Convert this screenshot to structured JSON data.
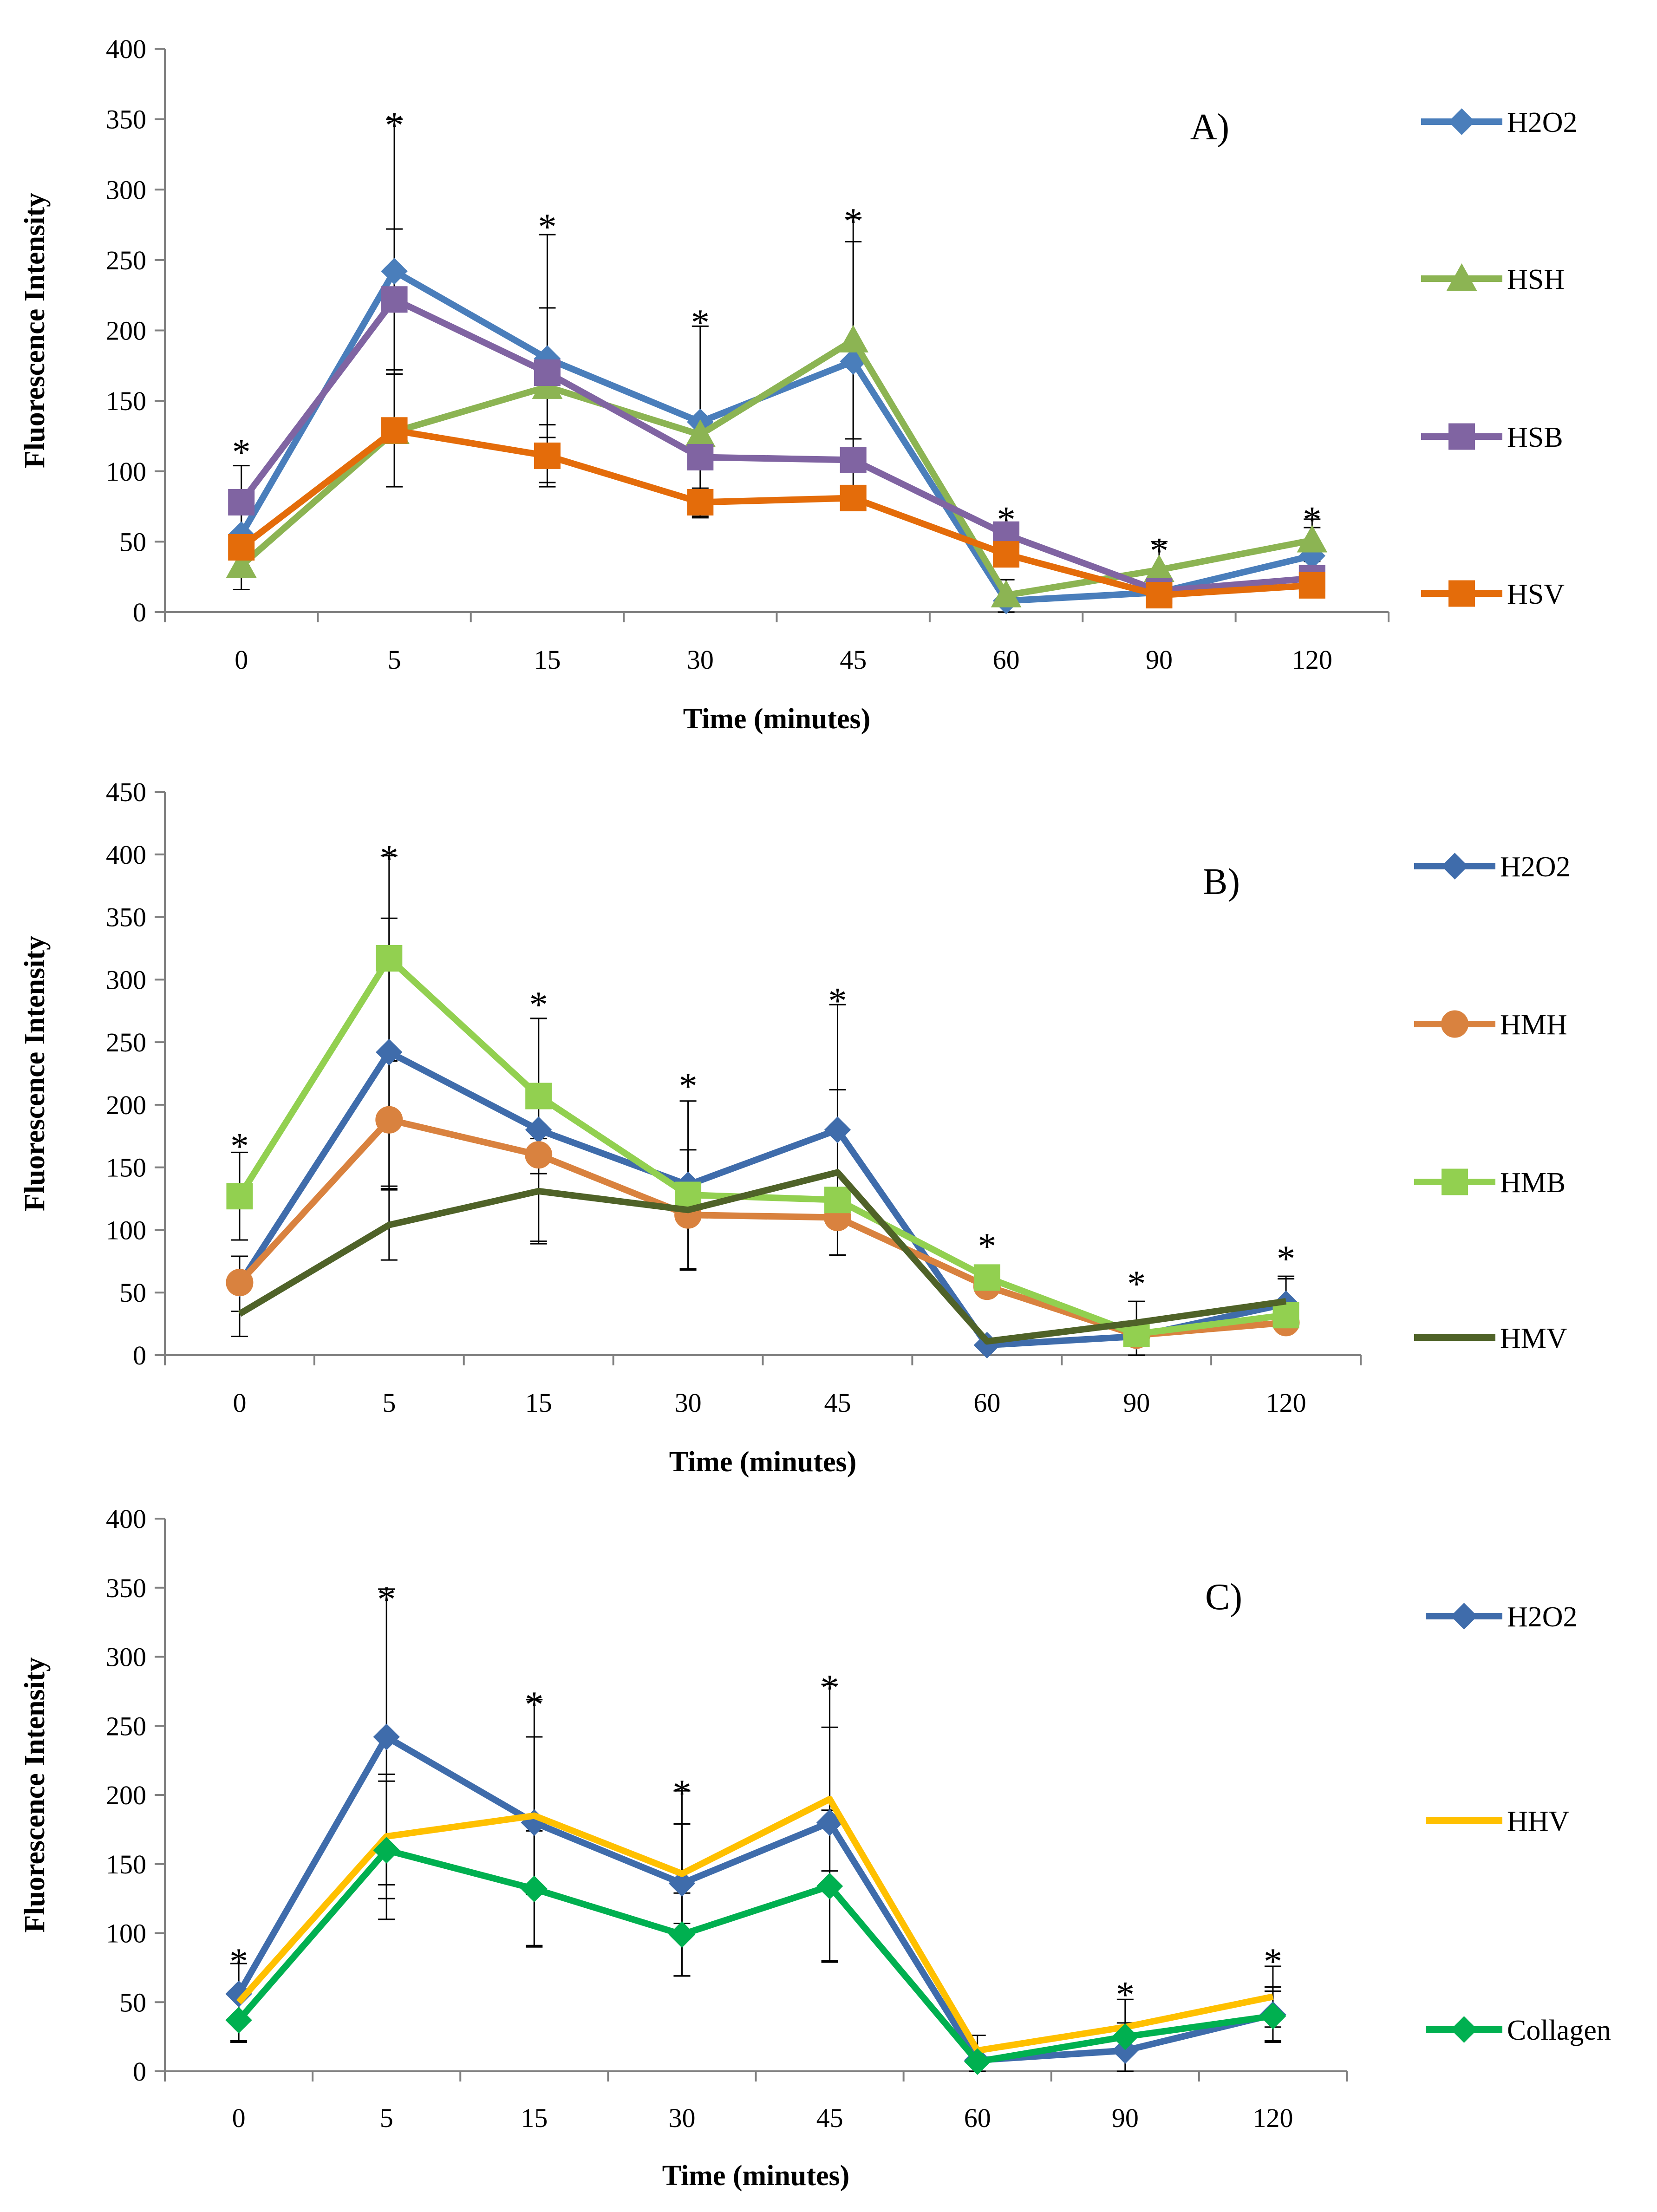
{
  "chart_data": [
    {
      "type": "line",
      "panel_label": "A)",
      "xlabel": "Time (minutes)",
      "ylabel": "Fluorescence Intensity",
      "categories": [
        "0",
        "5",
        "15",
        "30",
        "45",
        "60",
        "90",
        "120"
      ],
      "ylim": [
        0,
        400
      ],
      "yticks": [
        0,
        50,
        100,
        150,
        200,
        250,
        300,
        350,
        400
      ],
      "yticklabels": [
        "0",
        "50",
        "100",
        "150",
        "200",
        "250",
        "300",
        "350",
        "400"
      ],
      "significance": [
        "*",
        "*",
        "*",
        "*",
        "*",
        "*",
        "*",
        "*"
      ],
      "significance_y": [
        118,
        350,
        278,
        210,
        282,
        70,
        48,
        70
      ],
      "legend_position": "right",
      "series": [
        {
          "name": "H2O2",
          "color": "#4a7ebb",
          "marker": "diamond",
          "values": [
            55,
            242,
            180,
            135,
            178,
            8,
            14,
            40
          ],
          "errors": [
            22,
            108,
            88,
            68,
            102,
            15,
            0,
            20
          ]
        },
        {
          "name": "HSH",
          "color": "#8cb453",
          "marker": "triangle",
          "values": [
            33,
            128,
            160,
            126,
            193,
            12,
            30,
            51
          ],
          "errors": [
            17,
            0,
            56,
            0,
            70,
            0,
            20,
            15
          ]
        },
        {
          "name": "HSB",
          "color": "#8064a2",
          "marker": "square",
          "values": [
            78,
            222,
            170,
            110,
            108,
            55,
            15,
            24
          ],
          "errors": [
            26,
            50,
            46,
            0,
            0,
            0,
            0,
            0
          ]
        },
        {
          "name": "HSV",
          "color": "#e46c0a",
          "marker": "square",
          "values": [
            46,
            129,
            111,
            78,
            81,
            41,
            12,
            19
          ],
          "errors": [
            0,
            40,
            22,
            10,
            0,
            0,
            0,
            0
          ]
        }
      ]
    },
    {
      "type": "line",
      "panel_label": "B)",
      "xlabel": "Time (minutes)",
      "ylabel": "Fluorescence Intensity",
      "categories": [
        "0",
        "5",
        "15",
        "30",
        "45",
        "60",
        "90",
        "120"
      ],
      "ylim": [
        0,
        450
      ],
      "yticks": [
        0,
        50,
        100,
        150,
        200,
        250,
        300,
        350,
        400,
        450
      ],
      "yticklabels": [
        "0",
        "50",
        "100",
        "150",
        "200",
        "250",
        "300",
        "350",
        "400",
        "450"
      ],
      "significance": [
        "*",
        "*",
        "*",
        "*",
        "*",
        "*",
        "*",
        "*"
      ],
      "significance_y": [
        172,
        402,
        285,
        220,
        288,
        92,
        62,
        82
      ],
      "legend_position": "right",
      "series": [
        {
          "name": "H2O2",
          "color": "#3f6cab",
          "marker": "diamond",
          "values": [
            57,
            242,
            180,
            136,
            180,
            8,
            15,
            41
          ],
          "errors": [
            22,
            107,
            89,
            67,
            100,
            0,
            28,
            20
          ]
        },
        {
          "name": "HMH",
          "color": "#d9823f",
          "marker": "circle",
          "values": [
            58,
            188,
            160,
            112,
            110,
            55,
            16,
            26
          ],
          "errors": [
            0,
            55,
            0,
            0,
            0,
            0,
            0,
            0
          ]
        },
        {
          "name": "HMB",
          "color": "#92d050",
          "marker": "square",
          "values": [
            127,
            317,
            207,
            128,
            124,
            62,
            17,
            32
          ],
          "errors": [
            35,
            82,
            62,
            0,
            0,
            0,
            0,
            0
          ]
        },
        {
          "name": "HMV",
          "color": "#4f6228",
          "marker": "none",
          "values": [
            33,
            104,
            131,
            116,
            146,
            11,
            26,
            43
          ],
          "errors": [
            18,
            28,
            42,
            48,
            66,
            0,
            0,
            20
          ]
        }
      ]
    },
    {
      "type": "line",
      "panel_label": "C)",
      "xlabel": "Time (minutes)",
      "ylabel": "Fluorescence Intensity",
      "categories": [
        "0",
        "5",
        "15",
        "30",
        "45",
        "60",
        "90",
        "120"
      ],
      "ylim": [
        0,
        400
      ],
      "yticks": [
        0,
        50,
        100,
        150,
        200,
        250,
        300,
        350,
        400
      ],
      "yticklabels": [
        "0",
        "50",
        "100",
        "150",
        "200",
        "250",
        "300",
        "350",
        "400"
      ],
      "significance": [
        "*",
        "*",
        "*",
        "*",
        "*",
        "*",
        "*"
      ],
      "significance_x": [
        0,
        1,
        2,
        3,
        4,
        6,
        7
      ],
      "significance_y": [
        84,
        346,
        270,
        206,
        282,
        60,
        84
      ],
      "legend_position": "right",
      "series": [
        {
          "name": "H2O2",
          "color": "#3f6cab",
          "marker": "diamond",
          "values": [
            56,
            242,
            180,
            136,
            180,
            8,
            15,
            41
          ],
          "errors": [
            22,
            107,
            89,
            67,
            100,
            18,
            20,
            20
          ]
        },
        {
          "name": "HHV",
          "color": "#ffc000",
          "marker": "none",
          "values": [
            50,
            170,
            185,
            143,
            197,
            15,
            32,
            54
          ],
          "errors": [
            28,
            45,
            57,
            36,
            52,
            0,
            20,
            22
          ]
        },
        {
          "name": "Collagen",
          "color": "#00b050",
          "marker": "diamond",
          "values": [
            37,
            160,
            132,
            99,
            134,
            7,
            25,
            40
          ],
          "errors": [
            16,
            50,
            42,
            30,
            55,
            0,
            0,
            18
          ]
        }
      ]
    }
  ]
}
